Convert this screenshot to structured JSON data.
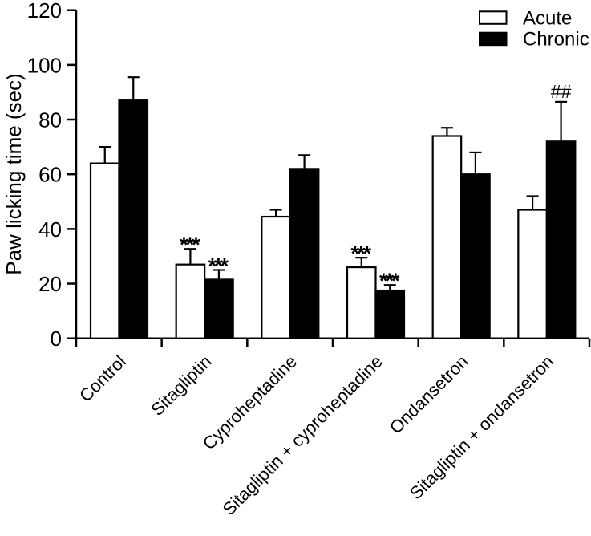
{
  "chart_data": {
    "type": "bar",
    "title": "",
    "ylabel": "Paw licking time (sec)",
    "xlabel": "",
    "ylim": [
      0,
      120
    ],
    "yticks": [
      0,
      20,
      40,
      60,
      80,
      100,
      120
    ],
    "grid": false,
    "legend_position": "top-right",
    "categories": [
      "Control",
      "Sitagliptin",
      "Cyproheptadine",
      "Sitagliptin + cyproheptadine",
      "Ondansetron",
      "Sitagliptin + ondansetron"
    ],
    "series": [
      {
        "name": "Acute",
        "color": "#ffffff",
        "values": [
          64,
          27,
          44.5,
          26,
          74,
          47
        ],
        "errors": [
          6,
          5.7,
          2.5,
          3.5,
          3,
          5
        ],
        "annotations": [
          "",
          "***",
          "",
          "***",
          "",
          ""
        ]
      },
      {
        "name": "Chronic",
        "color": "#000000",
        "values": [
          87,
          21.5,
          62,
          17.5,
          60,
          72
        ],
        "errors": [
          8.5,
          3.5,
          5,
          2,
          8,
          14.5
        ],
        "annotations": [
          "",
          "***",
          "",
          "***",
          "",
          "##"
        ]
      }
    ],
    "colors": {
      "axis": "#000000",
      "background": "#ffffff",
      "acute_fill": "#ffffff",
      "chronic_fill": "#000000"
    }
  }
}
